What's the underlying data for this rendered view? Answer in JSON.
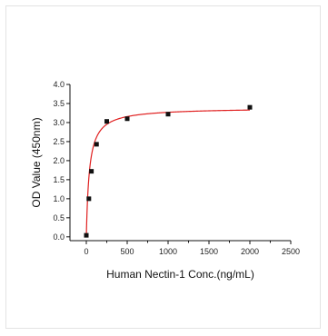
{
  "chart_data": {
    "type": "scatter",
    "title": "",
    "xlabel": "Human Nectin-1 Conc.(ng/mL)",
    "ylabel": "OD Value (450nm)",
    "xlim": [
      -200,
      2500
    ],
    "ylim": [
      -0.1,
      4.0
    ],
    "x_ticks": [
      0,
      500,
      1000,
      1500,
      2000,
      2500
    ],
    "x_tick_labels": [
      "0",
      "500",
      "1000",
      "1500",
      "2000",
      "2500"
    ],
    "y_ticks": [
      0.0,
      0.5,
      1.0,
      1.5,
      2.0,
      2.5,
      3.0,
      3.5,
      4.0
    ],
    "y_tick_labels": [
      "0.0",
      "0.5",
      "1.0",
      "1.5",
      "2.0",
      "2.5",
      "3.0",
      "3.5",
      "4.0"
    ],
    "grid": false,
    "series": [
      {
        "marker": "square",
        "color": "#111111",
        "x": [
          0,
          31.25,
          62.5,
          125,
          250,
          500,
          1000,
          2000
        ],
        "y": [
          0.04,
          1.0,
          1.72,
          2.43,
          3.03,
          3.1,
          3.22,
          3.4
        ]
      },
      {
        "type": "line",
        "color": "#e02020",
        "fit": "hyperbolic",
        "parameters": {
          "bmax": 3.39,
          "kd": 37
        },
        "x_range": [
          0,
          2000
        ]
      }
    ]
  }
}
